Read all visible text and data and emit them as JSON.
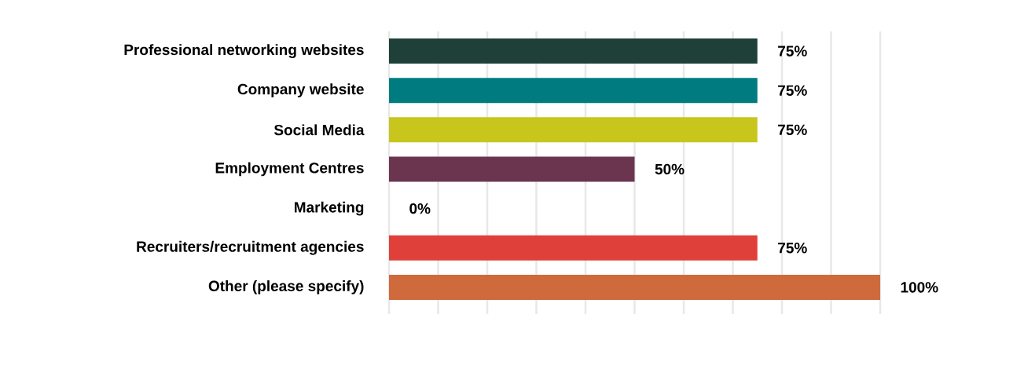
{
  "chart_data": {
    "type": "bar",
    "orientation": "horizontal",
    "categories": [
      "Professional networking websites",
      "Company website",
      "Social Media",
      "Employment Centres",
      "Marketing",
      "Recruiters/recruitment agencies",
      "Other (please specify)"
    ],
    "values": [
      75,
      75,
      75,
      50,
      0,
      75,
      100
    ],
    "value_labels": [
      "75%",
      "75%",
      "75%",
      "50%",
      "0%",
      "75%",
      "100%"
    ],
    "colors": [
      "#1e4038",
      "#007c80",
      "#c8c61c",
      "#6b3550",
      "#c8c8c8",
      "#e0403a",
      "#cf6a3c"
    ],
    "xlim": [
      0,
      100
    ],
    "xticks": [
      {
        "value": 0,
        "label": null
      },
      {
        "value": 10,
        "label": null
      },
      {
        "value": 20,
        "label": null
      },
      {
        "value": 30,
        "label": null
      },
      {
        "value": 40,
        "label": null
      },
      {
        "value": 50,
        "label": null
      },
      {
        "value": 60,
        "label": null
      },
      {
        "value": 70,
        "label": null
      },
      {
        "value": 80,
        "label": null
      },
      {
        "value": 90,
        "label": null
      },
      {
        "value": 100,
        "label": null
      }
    ],
    "grid": "x",
    "tick_labels": "y"
  }
}
